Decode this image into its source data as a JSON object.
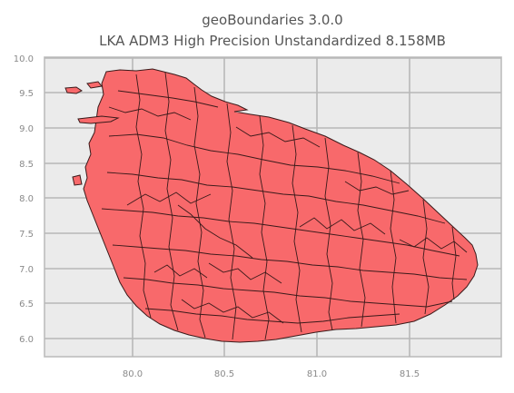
{
  "title_line1": "geoBoundaries 3.0.0",
  "title_line2": "LKA ADM3 High Precision Unstandardized 8.158MB",
  "fill_color": "#f8696b",
  "edge_color": "#3a1a1a",
  "background_color": "#ebebeb",
  "grid": true,
  "x_ticks": [
    "80.0",
    "80.5",
    "81.0",
    "81.5"
  ],
  "y_ticks": [
    "10.0",
    "9.5",
    "9.0",
    "8.5",
    "8.0",
    "7.5",
    "7.0",
    "6.5",
    "6.0"
  ],
  "xlim": [
    79.5,
    81.95
  ],
  "ylim": [
    5.7,
    10.02
  ]
}
